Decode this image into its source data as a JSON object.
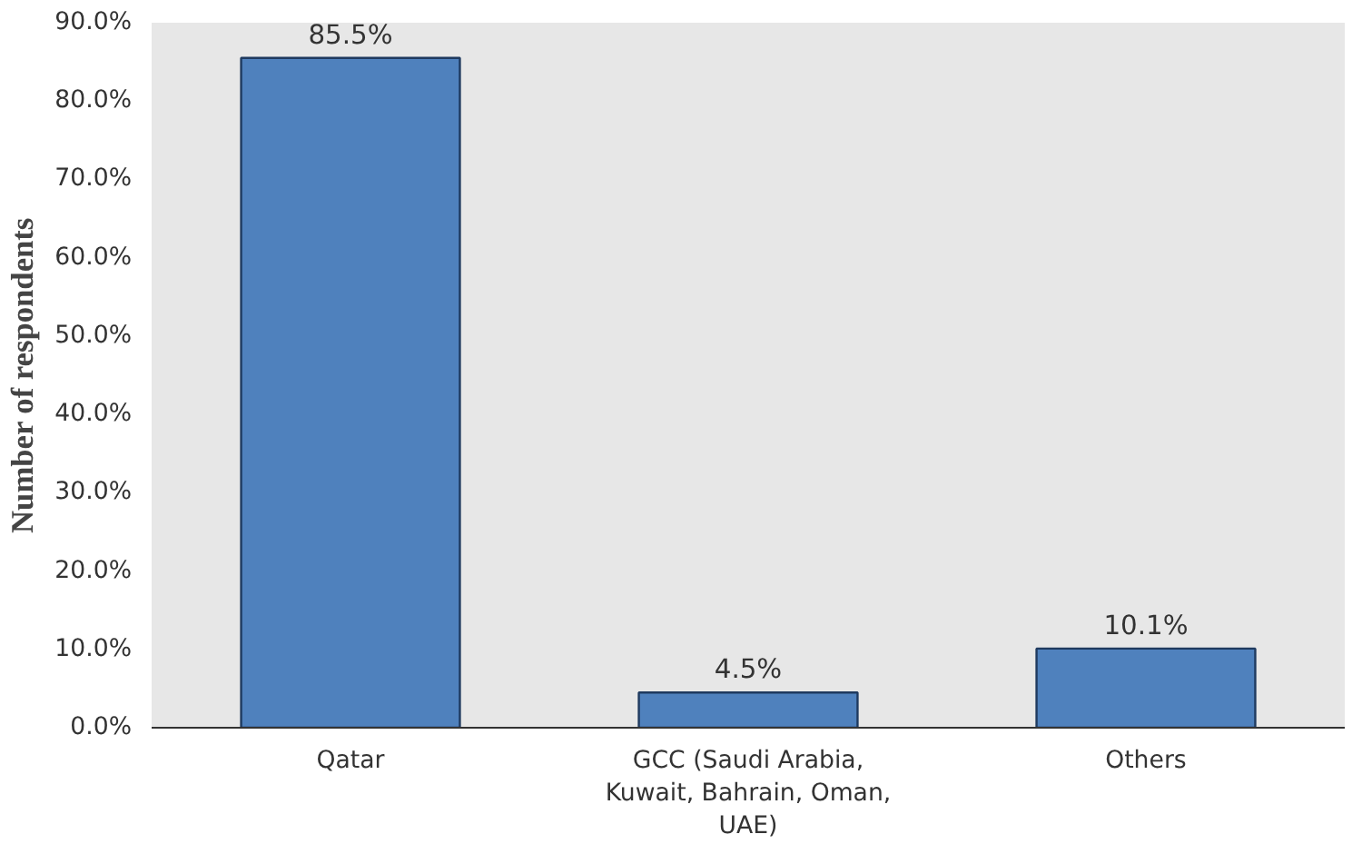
{
  "chart_data": {
    "type": "bar",
    "ylabel": "Number of respondents",
    "categories": [
      "Qatar",
      "GCC (Saudi Arabia, Kuwait, Bahrain, Oman, UAE)",
      "Others"
    ],
    "values": [
      85.5,
      4.5,
      10.1
    ],
    "color": "#4f81bd",
    "value_labels": [
      "85.5%",
      "4.5%",
      "10.1%"
    ],
    "ylim": [
      0,
      90
    ],
    "yticks": [
      {
        "value": 0,
        "label": "0.0%"
      },
      {
        "value": 10,
        "label": "10.0%"
      },
      {
        "value": 20,
        "label": "20.0%"
      },
      {
        "value": 30,
        "label": "30.0%"
      },
      {
        "value": 40,
        "label": "40.0%"
      },
      {
        "value": 50,
        "label": "50.0%"
      },
      {
        "value": 60,
        "label": "60.0%"
      },
      {
        "value": 70,
        "label": "70.0%"
      },
      {
        "value": 80,
        "label": "80.0%"
      },
      {
        "value": 90,
        "label": "90.0%"
      }
    ]
  }
}
